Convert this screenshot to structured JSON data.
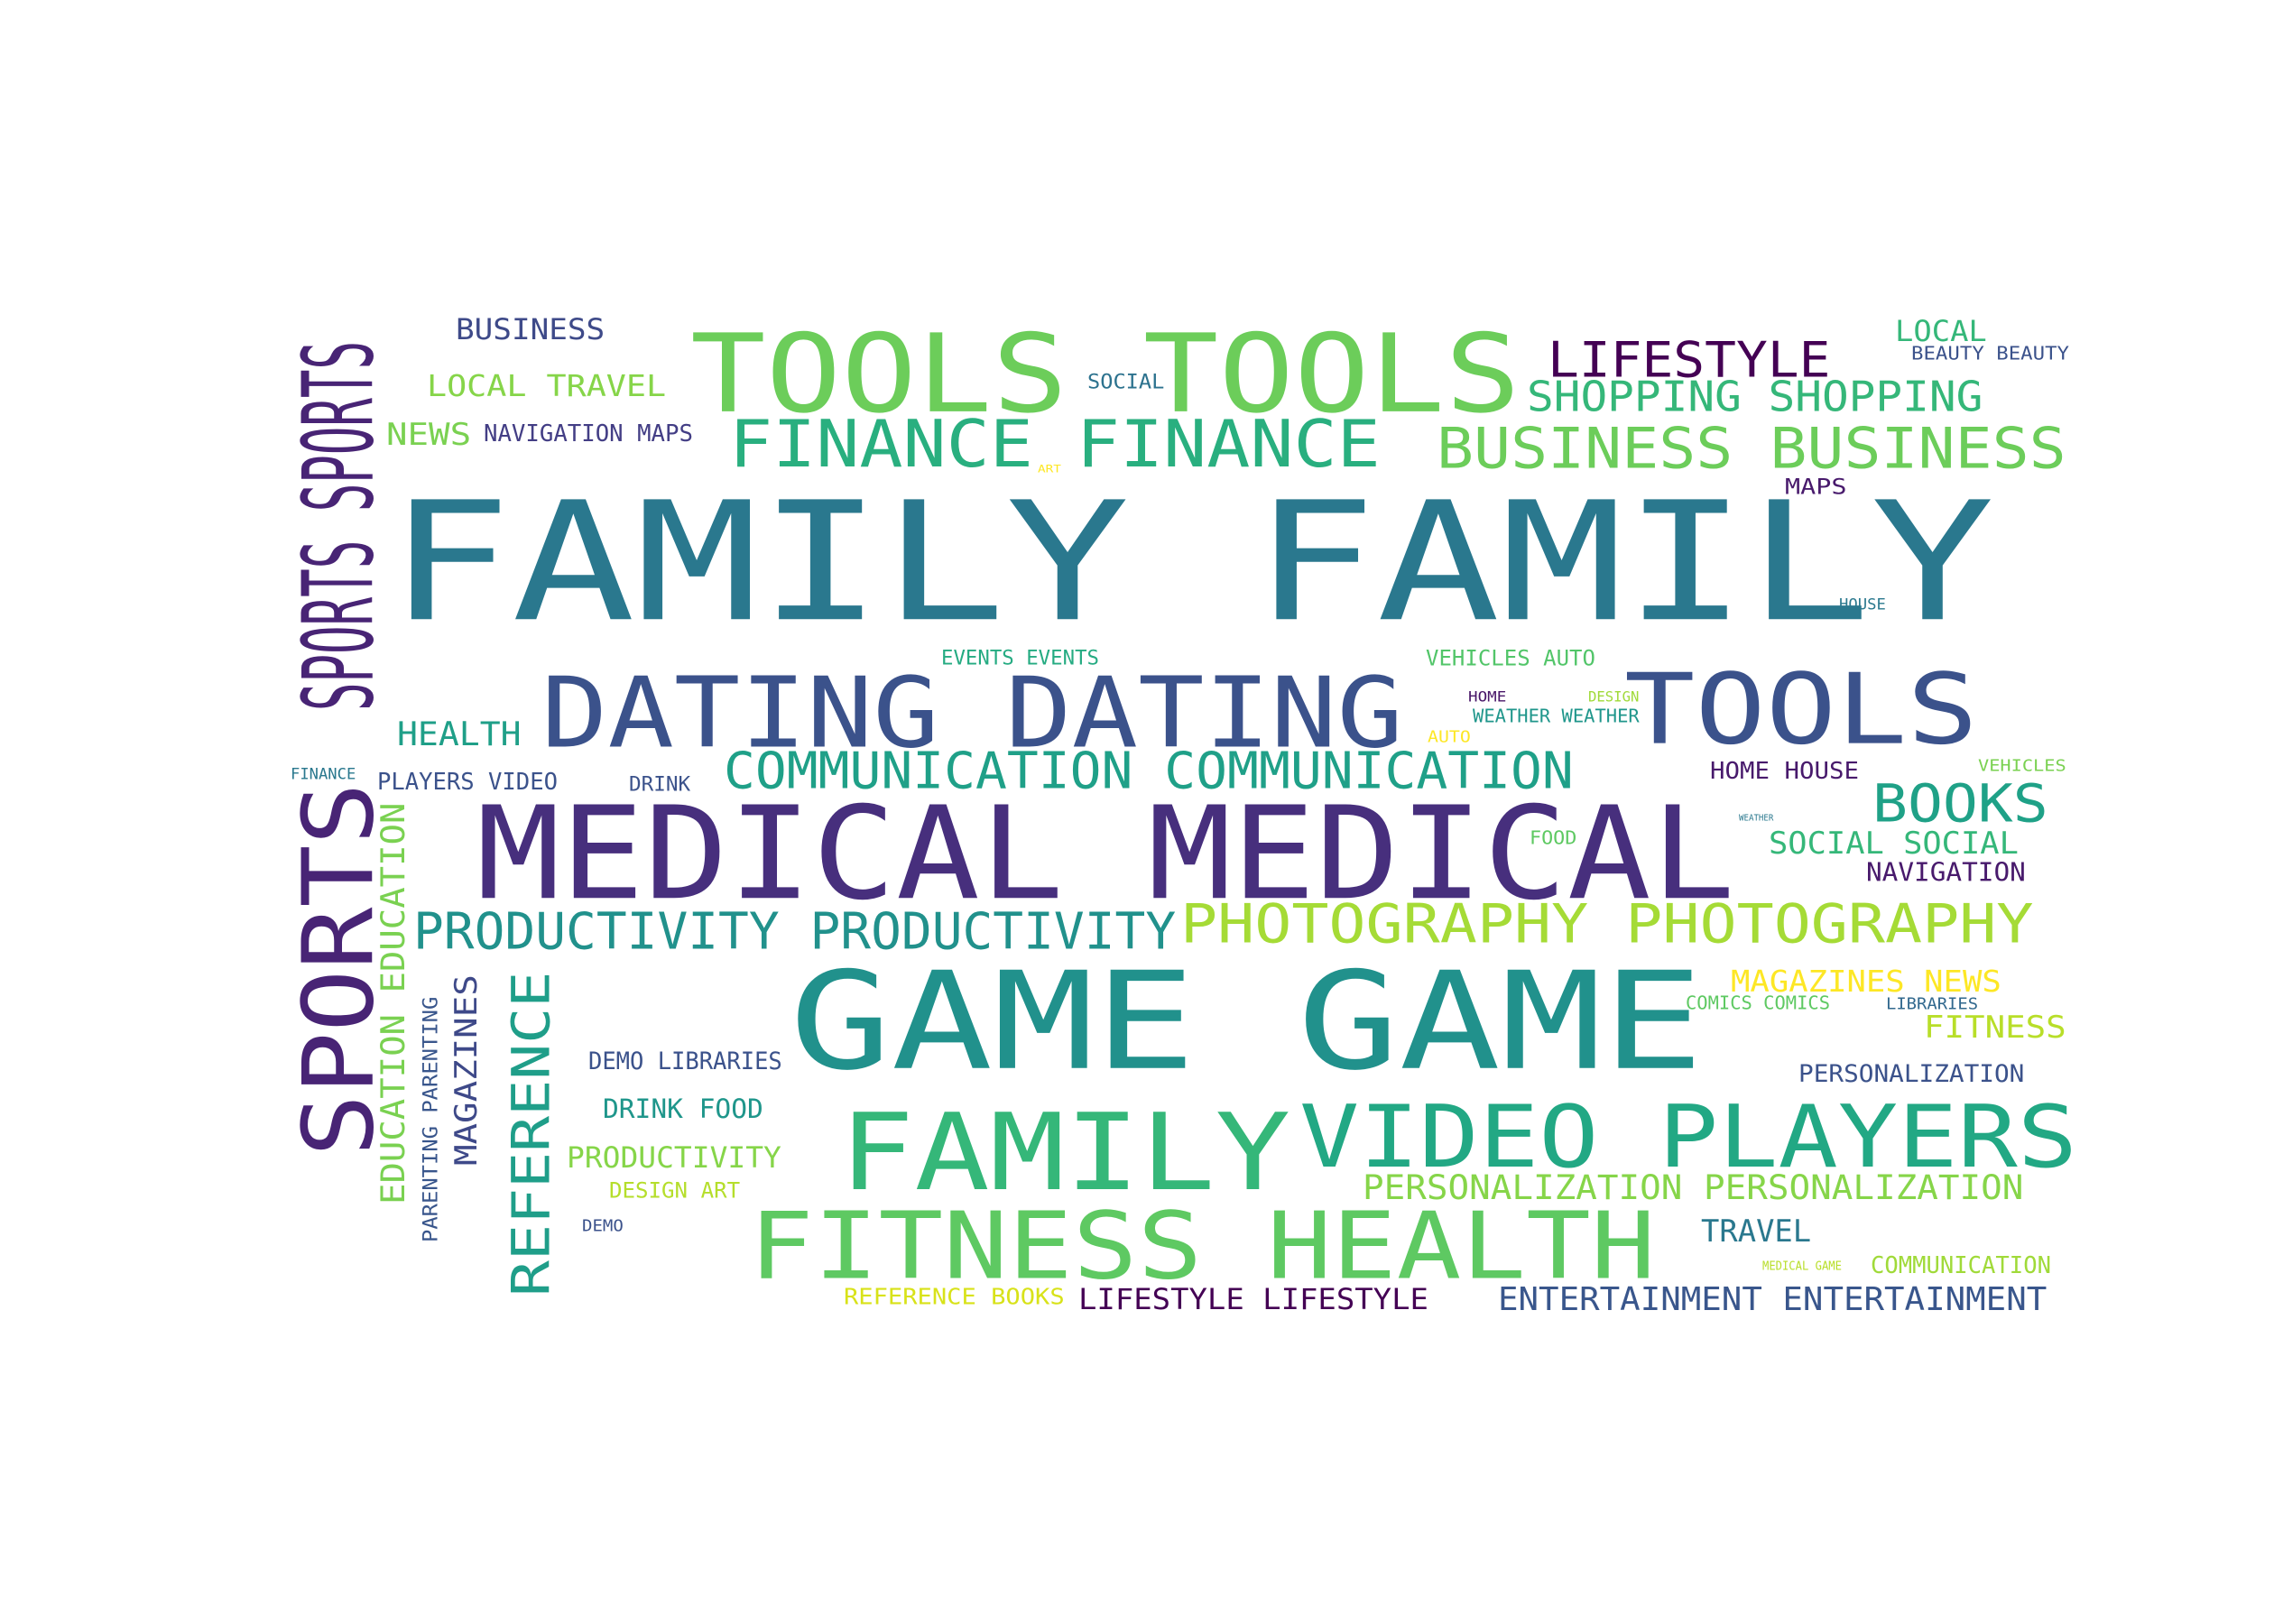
{
  "words": [
    {
      "text": "FAMILY FAMILY",
      "color": "#2a788e"
    },
    {
      "text": "TOOLS TOOLS",
      "color": "#6ccd5a"
    },
    {
      "text": "SPORTS SPORTS",
      "color": "#482475"
    },
    {
      "text": "SPORTS",
      "color": "#482475"
    },
    {
      "text": "DATING DATING",
      "color": "#3b528b"
    },
    {
      "text": "TOOLS",
      "color": "#3b528b"
    },
    {
      "text": "MEDICAL MEDICAL",
      "color": "#472f7d"
    },
    {
      "text": "GAME GAME",
      "color": "#21918c"
    },
    {
      "text": "FAMILY",
      "color": "#35b779"
    },
    {
      "text": "VIDEO PLAYERS",
      "color": "#22a884"
    },
    {
      "text": "FITNESS HEALTH",
      "color": "#5ec962"
    },
    {
      "text": "FINANCE FINANCE",
      "color": "#29af7f"
    },
    {
      "text": "BUSINESS BUSINESS",
      "color": "#6ccd5a"
    },
    {
      "text": "PHOTOGRAPHY PHOTOGRAPHY",
      "color": "#a5db36"
    },
    {
      "text": "PRODUCTIVITY PRODUCTIVITY",
      "color": "#21918c"
    },
    {
      "text": "COMMUNICATION COMMUNICATION",
      "color": "#1fa088"
    },
    {
      "text": "LIFESTYLE",
      "color": "#440154"
    },
    {
      "text": "SHOPPING SHOPPING",
      "color": "#35b779"
    },
    {
      "text": "BOOKS",
      "color": "#1fa187"
    },
    {
      "text": "REFERENCE",
      "color": "#1f9e89"
    },
    {
      "text": "MAGAZINES",
      "color": "#3e4989"
    },
    {
      "text": "EDUCATION EDUCATION",
      "color": "#7ad151"
    },
    {
      "text": "PARENTING PARENTING",
      "color": "#39568c"
    },
    {
      "text": "BUSINESS",
      "color": "#3e4a89"
    },
    {
      "text": "LOCAL TRAVEL",
      "color": "#86d549"
    },
    {
      "text": "NEWS",
      "color": "#7ad151"
    },
    {
      "text": "NAVIGATION MAPS",
      "color": "#433e85"
    },
    {
      "text": "SOCIAL",
      "color": "#2c728e"
    },
    {
      "text": "ART",
      "color": "#fde725"
    },
    {
      "text": "LOCAL",
      "color": "#35b779"
    },
    {
      "text": "BEAUTY BEAUTY",
      "color": "#3b528b"
    },
    {
      "text": "MAPS",
      "color": "#481a6c"
    },
    {
      "text": "HOUSE",
      "color": "#2a788e"
    },
    {
      "text": "EVENTS EVENTS",
      "color": "#25ab82"
    },
    {
      "text": "VEHICLES AUTO",
      "color": "#52c569"
    },
    {
      "text": "HOME",
      "color": "#481668"
    },
    {
      "text": "DESIGN",
      "color": "#a0da39"
    },
    {
      "text": "WEATHER WEATHER",
      "color": "#1f968b"
    },
    {
      "text": "AUTO",
      "color": "#fde725"
    },
    {
      "text": "HEALTH",
      "color": "#1f9f88"
    },
    {
      "text": "FINANCE",
      "color": "#2a788e"
    },
    {
      "text": "PLAYERS VIDEO",
      "color": "#3b528b"
    },
    {
      "text": "DRINK",
      "color": "#3b528b"
    },
    {
      "text": "HOME HOUSE",
      "color": "#481a6c"
    },
    {
      "text": "VEHICLES",
      "color": "#7ad151"
    },
    {
      "text": "WEATHER",
      "color": "#2a788e"
    },
    {
      "text": "FOOD",
      "color": "#5ec962"
    },
    {
      "text": "SOCIAL SOCIAL",
      "color": "#35b779"
    },
    {
      "text": "NAVIGATION",
      "color": "#481a6c"
    },
    {
      "text": "MAGAZINES NEWS",
      "color": "#fde725"
    },
    {
      "text": "COMICS COMICS",
      "color": "#5ec962"
    },
    {
      "text": "LIBRARIES",
      "color": "#31688e"
    },
    {
      "text": "FITNESS",
      "color": "#b8de29"
    },
    {
      "text": "PERSONALIZATION",
      "color": "#3b528b"
    },
    {
      "text": "DEMO LIBRARIES",
      "color": "#3b528b"
    },
    {
      "text": "DRINK FOOD",
      "color": "#1f968b"
    },
    {
      "text": "PRODUCTIVITY",
      "color": "#86d549"
    },
    {
      "text": "DESIGN ART",
      "color": "#b5de2b"
    },
    {
      "text": "DEMO",
      "color": "#3b528b"
    },
    {
      "text": "PERSONALIZATION PERSONALIZATION",
      "color": "#86d549"
    },
    {
      "text": "TRAVEL",
      "color": "#2a788e"
    },
    {
      "text": "MEDICAL GAME",
      "color": "#b8de29"
    },
    {
      "text": "COMMUNICATION",
      "color": "#a0da39"
    },
    {
      "text": "REFERENCE BOOKS",
      "color": "#d8e219"
    },
    {
      "text": "LIFESTYLE LIFESTYLE",
      "color": "#440154"
    },
    {
      "text": "ENTERTAINMENT ENTERTAINMENT",
      "color": "#39568c"
    }
  ]
}
